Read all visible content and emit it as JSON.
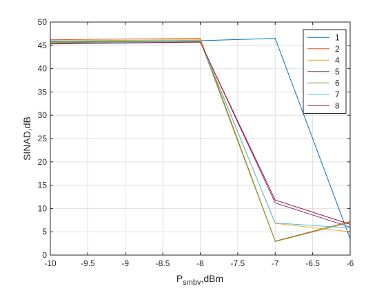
{
  "chart_data": {
    "type": "line",
    "xlabel": "P",
    "xlabel_subscript": "smbv",
    "xlabel_unit": ",dBm",
    "ylabel": "SINAD,dB",
    "xlim": [
      -10,
      -6
    ],
    "ylim": [
      0,
      50
    ],
    "grid": true,
    "legend_position": "top-right",
    "xticks": [
      -10,
      -9.5,
      -9,
      -8.5,
      -8,
      -7.5,
      -7,
      -6.5,
      -6
    ],
    "xtick_labels": [
      "-10",
      "-9.5",
      "-9",
      "-8.5",
      "-8",
      "-7.5",
      "-7",
      "-6.5",
      "-6"
    ],
    "yticks": [
      0,
      5,
      10,
      15,
      20,
      25,
      30,
      35,
      40,
      45,
      50
    ],
    "ytick_labels": [
      "0",
      "5",
      "10",
      "15",
      "20",
      "25",
      "30",
      "35",
      "40",
      "45",
      "50"
    ],
    "x": [
      -10,
      -8,
      -7,
      -6
    ],
    "series": [
      {
        "name": "1",
        "color": "#0072BD",
        "values": [
          45.8,
          46.0,
          46.5,
          3.5
        ]
      },
      {
        "name": "2",
        "color": "#D95319",
        "values": [
          46.2,
          46.5,
          3.0,
          7.2
        ]
      },
      {
        "name": "4",
        "color": "#EDB120",
        "values": [
          46.0,
          46.2,
          6.8,
          5.0
        ]
      },
      {
        "name": "5",
        "color": "#7E2F8E",
        "values": [
          45.5,
          45.8,
          11.2,
          6.0
        ]
      },
      {
        "name": "6",
        "color": "#77AC30",
        "values": [
          45.6,
          46.0,
          2.9,
          7.0
        ]
      },
      {
        "name": "7",
        "color": "#4DBEEE",
        "values": [
          45.4,
          45.9,
          6.9,
          5.8
        ]
      },
      {
        "name": "8",
        "color": "#A2142F",
        "values": [
          45.3,
          45.7,
          11.8,
          6.6
        ]
      }
    ]
  }
}
